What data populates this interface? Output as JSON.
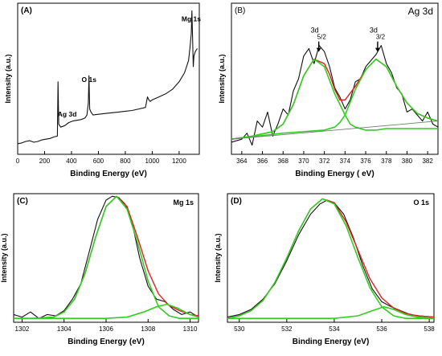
{
  "colors": {
    "raw": "#111111",
    "envelope": "#e0201e",
    "component": "#33cc22",
    "baseline": "#777777"
  },
  "chart_data": [
    {
      "id": "A",
      "type": "line",
      "panel_label": "(A)",
      "title": "",
      "xlabel": "Binding Energy (eV)",
      "ylabel": "Intensity (a.u.)",
      "xlim": [
        0,
        1350
      ],
      "ylim": [
        0,
        100
      ],
      "xticks": [
        0,
        200,
        400,
        600,
        800,
        1000,
        1200
      ],
      "annotations": [
        {
          "text": "Mg 1s",
          "x": 1290,
          "y": 88
        },
        {
          "text": "O 1s",
          "x": 530,
          "y": 48
        },
        {
          "text": "Ag 3d",
          "x": 368,
          "y": 25
        }
      ],
      "series": [
        {
          "role": "raw",
          "x": [
            0,
            30,
            60,
            90,
            120,
            150,
            180,
            210,
            240,
            270,
            295,
            300,
            305,
            320,
            350,
            380,
            410,
            440,
            470,
            500,
            515,
            525,
            530,
            535,
            545,
            560,
            600,
            650,
            700,
            750,
            800,
            850,
            900,
            950,
            965,
            975,
            985,
            1000,
            1050,
            1100,
            1150,
            1200,
            1240,
            1270,
            1280,
            1290,
            1295,
            1300,
            1305,
            1310,
            1320,
            1335
          ],
          "y": [
            7,
            7.5,
            8.5,
            9,
            8,
            8.5,
            9.5,
            10,
            10.5,
            11.5,
            12,
            48,
            20,
            18,
            19,
            21,
            22,
            22.5,
            23,
            24,
            26,
            34,
            52,
            30,
            28,
            26,
            26.5,
            27,
            27.5,
            28,
            28.5,
            29,
            30,
            31,
            38,
            36,
            35,
            36,
            38,
            40,
            43,
            48,
            54,
            62,
            70,
            80,
            95,
            78,
            58,
            65,
            68,
            70
          ]
        }
      ]
    },
    {
      "id": "B",
      "type": "line",
      "panel_label": "(B)",
      "title": "Ag 3d",
      "xlabel": "Binding Energy ( eV)",
      "ylabel": "Intensity (a.u.)",
      "xlim": [
        363,
        383
      ],
      "ylim": [
        0,
        100
      ],
      "xticks": [
        364,
        366,
        368,
        370,
        372,
        374,
        376,
        378,
        380,
        382
      ],
      "annotations": [
        {
          "text": "3d",
          "sub": "5/2",
          "x": 371.3,
          "y": 72
        },
        {
          "text": "3d",
          "sub": "3/2",
          "x": 377.0,
          "y": 72
        }
      ],
      "series": [
        {
          "role": "raw",
          "x": [
            363,
            364,
            364.5,
            365,
            365.5,
            366,
            366.5,
            367,
            367.5,
            368,
            368.5,
            369,
            369.5,
            370,
            370.5,
            371,
            371.5,
            372,
            372.5,
            373,
            373.5,
            374,
            374.5,
            375,
            375.5,
            376,
            376.5,
            377,
            377.5,
            378,
            378.5,
            379,
            379.5,
            380,
            380.5,
            381,
            381.5,
            382,
            382.5,
            383
          ],
          "y": [
            8,
            10,
            14,
            6,
            22,
            18,
            28,
            12,
            20,
            30,
            26,
            42,
            50,
            65,
            70,
            60,
            72,
            68,
            58,
            44,
            38,
            30,
            36,
            48,
            50,
            58,
            62,
            66,
            72,
            60,
            54,
            44,
            40,
            28,
            30,
            26,
            22,
            28,
            20,
            18
          ]
        },
        {
          "role": "envelope",
          "x": [
            363,
            365,
            367,
            368,
            369,
            370,
            371,
            372,
            372.5,
            373,
            373.5,
            374,
            375,
            376,
            377,
            378,
            379,
            380,
            381,
            382,
            383
          ],
          "y": [
            10,
            12,
            15,
            20,
            33,
            52,
            63,
            60,
            53,
            43,
            36,
            36,
            45,
            56,
            63,
            58,
            45,
            34,
            27,
            24,
            22
          ]
        },
        {
          "role": "component",
          "x": [
            363,
            365,
            367,
            368,
            369,
            370,
            371,
            372,
            373,
            374,
            374.5,
            375,
            376,
            377,
            378,
            379,
            380,
            381,
            382,
            383
          ],
          "y": [
            10,
            12,
            15,
            20,
            33,
            52,
            63,
            58,
            40,
            26,
            20,
            18,
            16,
            16,
            17,
            17,
            17,
            17,
            17,
            17
          ]
        },
        {
          "role": "component",
          "x": [
            363,
            368,
            372,
            373,
            373.5,
            374,
            375,
            376,
            377,
            378,
            379,
            380,
            381,
            382,
            383
          ],
          "y": [
            10,
            14,
            16,
            18,
            21,
            26,
            43,
            56,
            63,
            58,
            45,
            34,
            27,
            24,
            22
          ]
        },
        {
          "role": "baseline",
          "x": [
            363,
            383
          ],
          "y": [
            10,
            22
          ]
        }
      ]
    },
    {
      "id": "C",
      "type": "line",
      "panel_label": "(C)",
      "title": "Mg 1s",
      "xlabel": "Binding Energy (eV)",
      "ylabel": "Intensity (a.u.)",
      "xlim": [
        1301.6,
        1310.4
      ],
      "ylim": [
        0,
        100
      ],
      "xticks": [
        1302,
        1304,
        1306,
        1308,
        1310
      ],
      "annotations": [],
      "series": [
        {
          "role": "raw",
          "x": [
            1301.6,
            1302,
            1302.4,
            1302.8,
            1303.2,
            1303.6,
            1304,
            1304.4,
            1304.8,
            1305.2,
            1305.6,
            1306,
            1306.3,
            1306.6,
            1306.9,
            1307.2,
            1307.6,
            1308,
            1308.4,
            1308.8,
            1309.2,
            1309.6,
            1310,
            1310.4
          ],
          "y": [
            6,
            4,
            8,
            3,
            6,
            5,
            9,
            18,
            30,
            55,
            80,
            95,
            98,
            97,
            92,
            80,
            50,
            28,
            18,
            16,
            10,
            6,
            8,
            4
          ]
        },
        {
          "role": "envelope",
          "x": [
            1301.6,
            1302.5,
            1303.5,
            1304,
            1304.5,
            1305,
            1305.5,
            1306,
            1306.5,
            1307,
            1307.5,
            1308,
            1308.5,
            1309,
            1309.5,
            1310,
            1310.4
          ],
          "y": [
            3,
            3,
            4,
            8,
            18,
            38,
            66,
            90,
            98,
            90,
            66,
            40,
            22,
            13,
            9,
            6,
            5
          ]
        },
        {
          "role": "component",
          "x": [
            1301.6,
            1302.5,
            1303.5,
            1304,
            1304.5,
            1305,
            1305.5,
            1306,
            1306.5,
            1307,
            1307.5,
            1308,
            1308.5,
            1309,
            1309.5,
            1310,
            1310.4
          ],
          "y": [
            3,
            3,
            4,
            8,
            18,
            38,
            66,
            90,
            98,
            88,
            62,
            32,
            12,
            5,
            3,
            3,
            3
          ]
        },
        {
          "role": "component",
          "x": [
            1301.6,
            1304,
            1306,
            1307,
            1307.8,
            1308.4,
            1308.9,
            1309.4,
            1310,
            1310.4
          ],
          "y": [
            3,
            3,
            3,
            4,
            8,
            12,
            14,
            11,
            6,
            4
          ]
        }
      ]
    },
    {
      "id": "D",
      "type": "line",
      "panel_label": "(D)",
      "title": "O 1s",
      "xlabel": "Binding Energy (eV)",
      "ylabel": "Intensity (a.u.)",
      "xlim": [
        529.5,
        538.2
      ],
      "ylim": [
        0,
        100
      ],
      "xticks": [
        530,
        532,
        534,
        536,
        538
      ],
      "annotations": [],
      "series": [
        {
          "role": "raw",
          "x": [
            529.5,
            530,
            530.5,
            531,
            531.5,
            532,
            532.5,
            533,
            533.4,
            533.7,
            534,
            534.4,
            534.8,
            535.2,
            535.6,
            536,
            536.4,
            536.8,
            537.2,
            537.6,
            538.2
          ],
          "y": [
            4,
            6,
            10,
            18,
            30,
            48,
            68,
            84,
            92,
            95,
            93,
            84,
            66,
            44,
            26,
            16,
            12,
            9,
            6,
            5,
            4
          ]
        },
        {
          "role": "envelope",
          "x": [
            529.5,
            530,
            530.5,
            531,
            531.5,
            532,
            532.5,
            533,
            533.5,
            534,
            534.5,
            535,
            535.5,
            536,
            536.5,
            537,
            537.5,
            538.2
          ],
          "y": [
            3,
            5,
            9,
            17,
            31,
            50,
            71,
            88,
            96,
            93,
            78,
            56,
            34,
            19,
            11,
            7,
            5,
            4
          ]
        },
        {
          "role": "component",
          "x": [
            529.5,
            530,
            530.5,
            531,
            531.5,
            532,
            532.5,
            533,
            533.5,
            534,
            534.5,
            535,
            535.5,
            536,
            536.5,
            537,
            537.5,
            538.2
          ],
          "y": [
            3,
            5,
            9,
            17,
            31,
            50,
            71,
            88,
            96,
            92,
            75,
            50,
            27,
            12,
            5,
            3,
            3,
            3
          ]
        },
        {
          "role": "component",
          "x": [
            529.5,
            532,
            534,
            535,
            535.6,
            536.1,
            536.5,
            537,
            537.5,
            538.2
          ],
          "y": [
            3,
            3,
            3,
            5,
            9,
            12,
            10,
            6,
            4,
            3
          ]
        }
      ]
    }
  ]
}
